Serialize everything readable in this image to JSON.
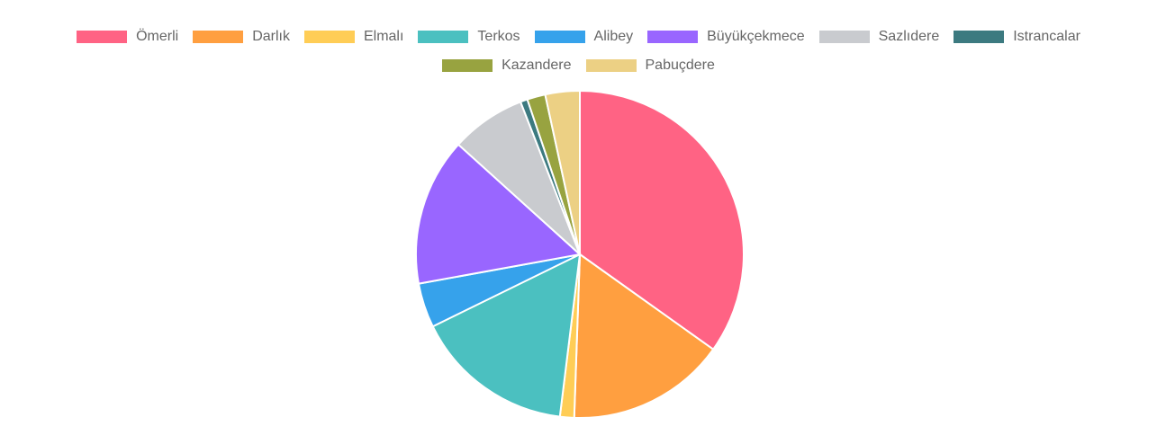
{
  "chart_data": {
    "type": "pie",
    "categories": [
      "Ömerli",
      "Darlık",
      "Elmalı",
      "Terkos",
      "Alibey",
      "Büyükçekmece",
      "Sazlıdere",
      "Istrancalar",
      "Kazandere",
      "Pabuçdere"
    ],
    "values": [
      34.9,
      15.7,
      1.4,
      15.8,
      4.4,
      14.6,
      7.4,
      0.7,
      1.8,
      3.4
    ],
    "colors": [
      "#ff6384",
      "#ff9f40",
      "#ffcd56",
      "#4bc0c0",
      "#36a2eb",
      "#9966ff",
      "#c9cbcf",
      "#3c7a80",
      "#98a340",
      "#ecd084"
    ],
    "legend": "top"
  }
}
